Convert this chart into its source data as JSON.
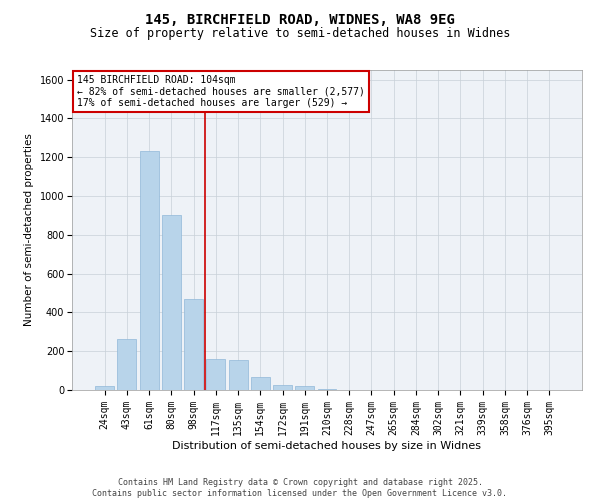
{
  "title1": "145, BIRCHFIELD ROAD, WIDNES, WA8 9EG",
  "title2": "Size of property relative to semi-detached houses in Widnes",
  "xlabel": "Distribution of semi-detached houses by size in Widnes",
  "ylabel": "Number of semi-detached properties",
  "categories": [
    "24sqm",
    "43sqm",
    "61sqm",
    "80sqm",
    "98sqm",
    "117sqm",
    "135sqm",
    "154sqm",
    "172sqm",
    "191sqm",
    "210sqm",
    "228sqm",
    "247sqm",
    "265sqm",
    "284sqm",
    "302sqm",
    "321sqm",
    "339sqm",
    "358sqm",
    "376sqm",
    "395sqm"
  ],
  "values": [
    20,
    265,
    1230,
    900,
    470,
    160,
    155,
    65,
    25,
    20,
    5,
    0,
    0,
    0,
    0,
    0,
    0,
    0,
    0,
    0,
    0
  ],
  "bar_color": "#b8d4ea",
  "bar_edge_color": "#90b8d8",
  "vline_color": "#cc0000",
  "annotation_line1": "145 BIRCHFIELD ROAD: 104sqm",
  "annotation_line2": "← 82% of semi-detached houses are smaller (2,577)",
  "annotation_line3": "17% of semi-detached houses are larger (529) →",
  "annotation_box_color": "#cc0000",
  "ylim": [
    0,
    1650
  ],
  "yticks": [
    0,
    200,
    400,
    600,
    800,
    1000,
    1200,
    1400,
    1600
  ],
  "bg_color": "#eef2f7",
  "footer1": "Contains HM Land Registry data © Crown copyright and database right 2025.",
  "footer2": "Contains public sector information licensed under the Open Government Licence v3.0.",
  "title1_fontsize": 10,
  "title2_fontsize": 8.5,
  "xlabel_fontsize": 8,
  "ylabel_fontsize": 7.5,
  "tick_fontsize": 7,
  "footer_fontsize": 6,
  "annot_fontsize": 7
}
